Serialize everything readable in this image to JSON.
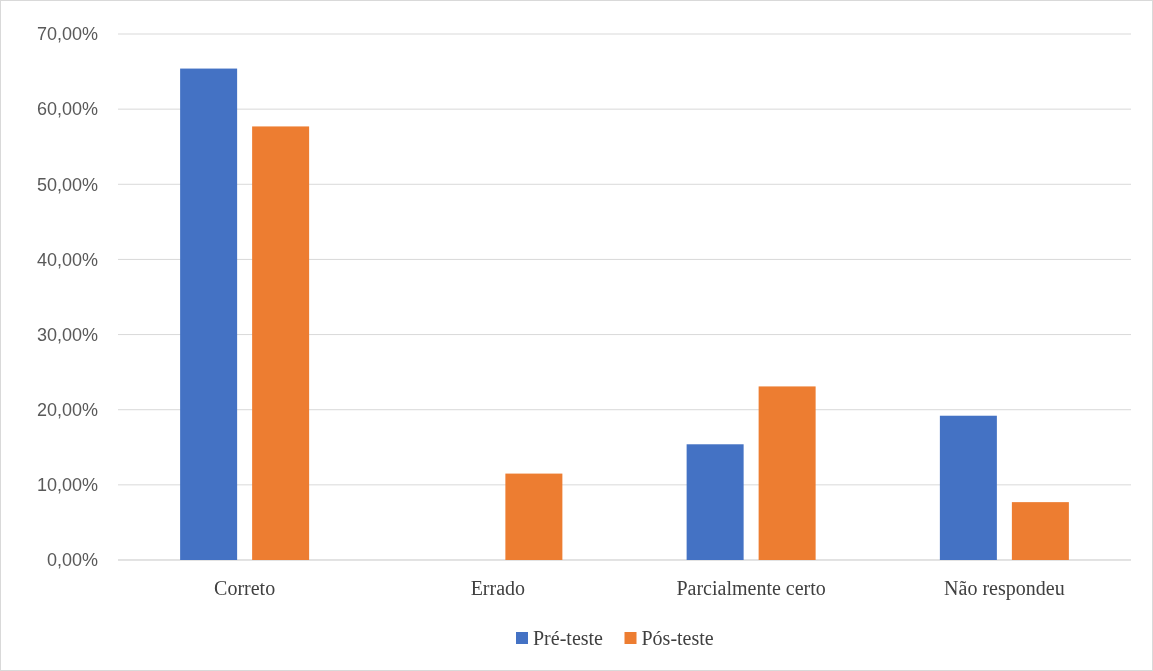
{
  "chart_data": {
    "type": "bar",
    "categories": [
      "Correto",
      "Errado",
      "Parcialmente certo",
      "Não respondeu"
    ],
    "series": [
      {
        "name": "Pré-teste",
        "color": "#4472c4",
        "values": [
          65.4,
          0,
          15.4,
          19.2
        ]
      },
      {
        "name": "Pós-teste",
        "color": "#ed7d31",
        "values": [
          57.7,
          11.5,
          23.1,
          7.7
        ]
      }
    ],
    "ylim": [
      0,
      70
    ],
    "yticks": [
      {
        "value": 0,
        "label": "0,00%"
      },
      {
        "value": 10,
        "label": "10,00%"
      },
      {
        "value": 20,
        "label": "20,00%"
      },
      {
        "value": 30,
        "label": "30,00%"
      },
      {
        "value": 40,
        "label": "40,00%"
      },
      {
        "value": 50,
        "label": "50,00%"
      },
      {
        "value": 60,
        "label": "60,00%"
      },
      {
        "value": 70,
        "label": "70,00%"
      }
    ],
    "grid": "y",
    "legend": "bottom"
  }
}
